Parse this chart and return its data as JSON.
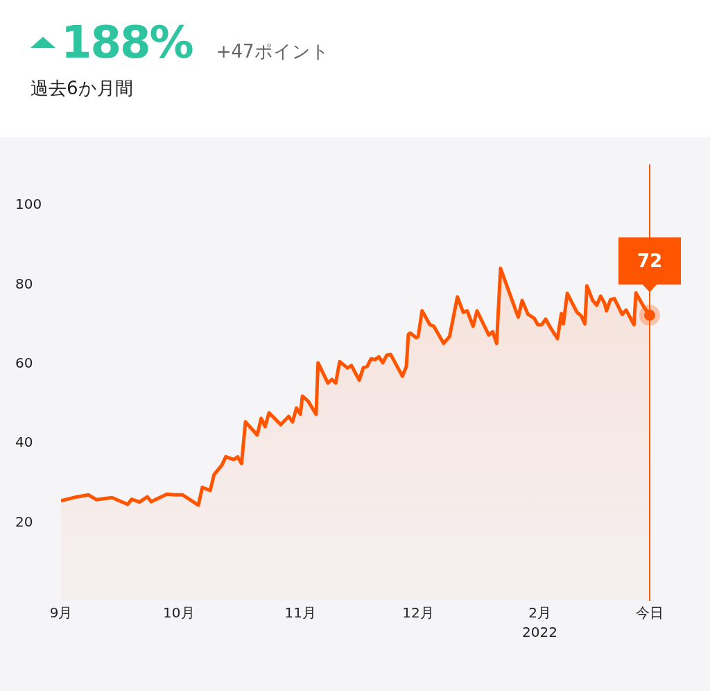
{
  "chart_data": {
    "type": "area",
    "title": "188%",
    "subtitle": "+47ポイント",
    "annotations": [
      "過去6か月間",
      {
        "text": "72",
        "x": "2022-01-29",
        "y": 72
      }
    ],
    "x": [
      "2021-09-01",
      "2021-09-05",
      "2021-09-08",
      "2021-09-10",
      "2021-09-14",
      "2021-09-18",
      "2021-09-19",
      "2021-09-21",
      "2021-09-23",
      "2021-09-24",
      "2021-09-28",
      "2021-09-30",
      "2021-10-02",
      "2021-10-06",
      "2021-10-07",
      "2021-10-09",
      "2021-10-10",
      "2021-10-12",
      "2021-10-13",
      "2021-10-15",
      "2021-10-16",
      "2021-10-17",
      "2021-10-18",
      "2021-10-21",
      "2021-10-22",
      "2021-10-23",
      "2021-10-24",
      "2021-10-27",
      "2021-10-29",
      "2021-10-30",
      "2021-10-31",
      "2021-11-01",
      "2021-11-01T12:00",
      "2021-11-03",
      "2021-11-05",
      "2021-11-05T12:00",
      "2021-11-08",
      "2021-11-09",
      "2021-11-10",
      "2021-11-11",
      "2021-11-13",
      "2021-11-14",
      "2021-11-16",
      "2021-11-17",
      "2021-11-18",
      "2021-11-19",
      "2021-11-20",
      "2021-11-21",
      "2021-11-22",
      "2021-11-23",
      "2021-11-24",
      "2021-11-27",
      "2021-11-28",
      "2021-11-28T12:00",
      "2021-11-29",
      "2021-11-30T12:00",
      "2021-12-01",
      "2021-12-02",
      "2021-12-04",
      "2021-12-05",
      "2021-12-07T12:00",
      "2021-12-09",
      "2021-12-11",
      "2021-12-12T12:00",
      "2021-12-13T12:00",
      "2021-12-15",
      "2021-12-16",
      "2021-12-19",
      "2021-12-20",
      "2021-12-21",
      "2021-12-22",
      "2021-12-26T12:00",
      "2021-12-27T12:00",
      "2021-12-29",
      "2021-12-30T12:00",
      "2021-12-31T12:00",
      "2022-01-01T12:00",
      "2022-01-02T12:00",
      "2022-01-03T12:00",
      "2022-01-05T12:00",
      "2022-01-06T12:00",
      "2022-01-07",
      "2022-01-08",
      "2022-01-10T12:00",
      "2022-01-11T12:00",
      "2022-01-12T12:00",
      "2022-01-13",
      "2022-01-14T12:00",
      "2022-01-15T12:00",
      "2022-01-16T12:00",
      "2022-01-17T12:00",
      "2022-01-18",
      "2022-01-19",
      "2022-01-20",
      "2022-01-22",
      "2022-01-23",
      "2022-01-25",
      "2022-01-25T12:00",
      "2022-01-27T12:00",
      "2022-01-29"
    ],
    "series": [
      {
        "color": "#ff5500",
        "values": [
          25.2,
          26.2,
          26.7,
          25.5,
          26.0,
          24.3,
          25.6,
          24.9,
          26.2,
          25.0,
          26.9,
          26.7,
          26.7,
          24.1,
          28.6,
          27.8,
          31.8,
          34.2,
          36.3,
          35.6,
          36.3,
          34.6,
          45.1,
          41.8,
          46.0,
          43.9,
          47.4,
          44.4,
          46.5,
          45.1,
          48.6,
          47.0,
          51.6,
          50.3,
          47.0,
          60.0,
          54.9,
          55.8,
          54.9,
          60.3,
          58.7,
          59.3,
          55.6,
          58.7,
          59.1,
          61.0,
          60.8,
          61.5,
          60.0,
          61.9,
          62.1,
          56.6,
          59.1,
          67.1,
          67.5,
          66.3,
          66.6,
          73.1,
          69.6,
          69.2,
          64.9,
          66.6,
          76.6,
          72.7,
          73.1,
          69.2,
          73.1,
          67.0,
          67.8,
          64.9,
          83.8,
          71.5,
          75.7,
          72.2,
          71.3,
          69.6,
          69.6,
          71.0,
          69.2,
          66.1,
          72.4,
          69.8,
          77.5,
          72.7,
          71.9,
          69.8,
          79.4,
          75.7,
          74.5,
          76.8,
          75.0,
          73.1,
          75.9,
          76.2,
          72.2,
          73.3,
          69.6,
          77.6,
          74.1,
          72
        ]
      }
    ],
    "xlim": [
      "2021-09-01",
      "2022-01-29"
    ],
    "xticks": [
      {
        "value": "2021-09-01",
        "label": "9月"
      },
      {
        "value": "2021-10-01",
        "label": "10月"
      },
      {
        "value": "2021-11-01",
        "label": "11月"
      },
      {
        "value": "2021-12-01",
        "label": "12月"
      },
      {
        "value": "2022-01-01",
        "label": "2月\n2022"
      },
      {
        "value": "2022-01-29",
        "label": "今日"
      }
    ],
    "ylim": [
      0,
      110
    ],
    "yticks": [
      20,
      40,
      60,
      80,
      100
    ],
    "ref_lines": [
      {
        "axis": "x",
        "value": "2022-01-29",
        "color": "#ff5500"
      }
    ],
    "marker": "none",
    "line_style": "solid",
    "grid": false,
    "legend": false
  }
}
